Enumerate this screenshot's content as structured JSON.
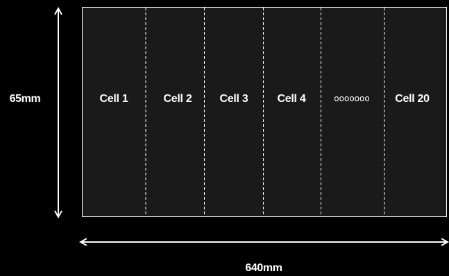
{
  "diagram": {
    "colors": {
      "background": "#000000",
      "panel_fill": "#1a1a1a",
      "stroke": "#ffffff"
    },
    "cells": [
      {
        "label": "Cell 1"
      },
      {
        "label": "Cell 2"
      },
      {
        "label": "Cell 3"
      },
      {
        "label": "Cell 4"
      },
      {
        "label": "ooooooo"
      },
      {
        "label": "Cell 20"
      }
    ],
    "dimensions": {
      "height_label": "65mm",
      "width_label": "640mm"
    }
  }
}
